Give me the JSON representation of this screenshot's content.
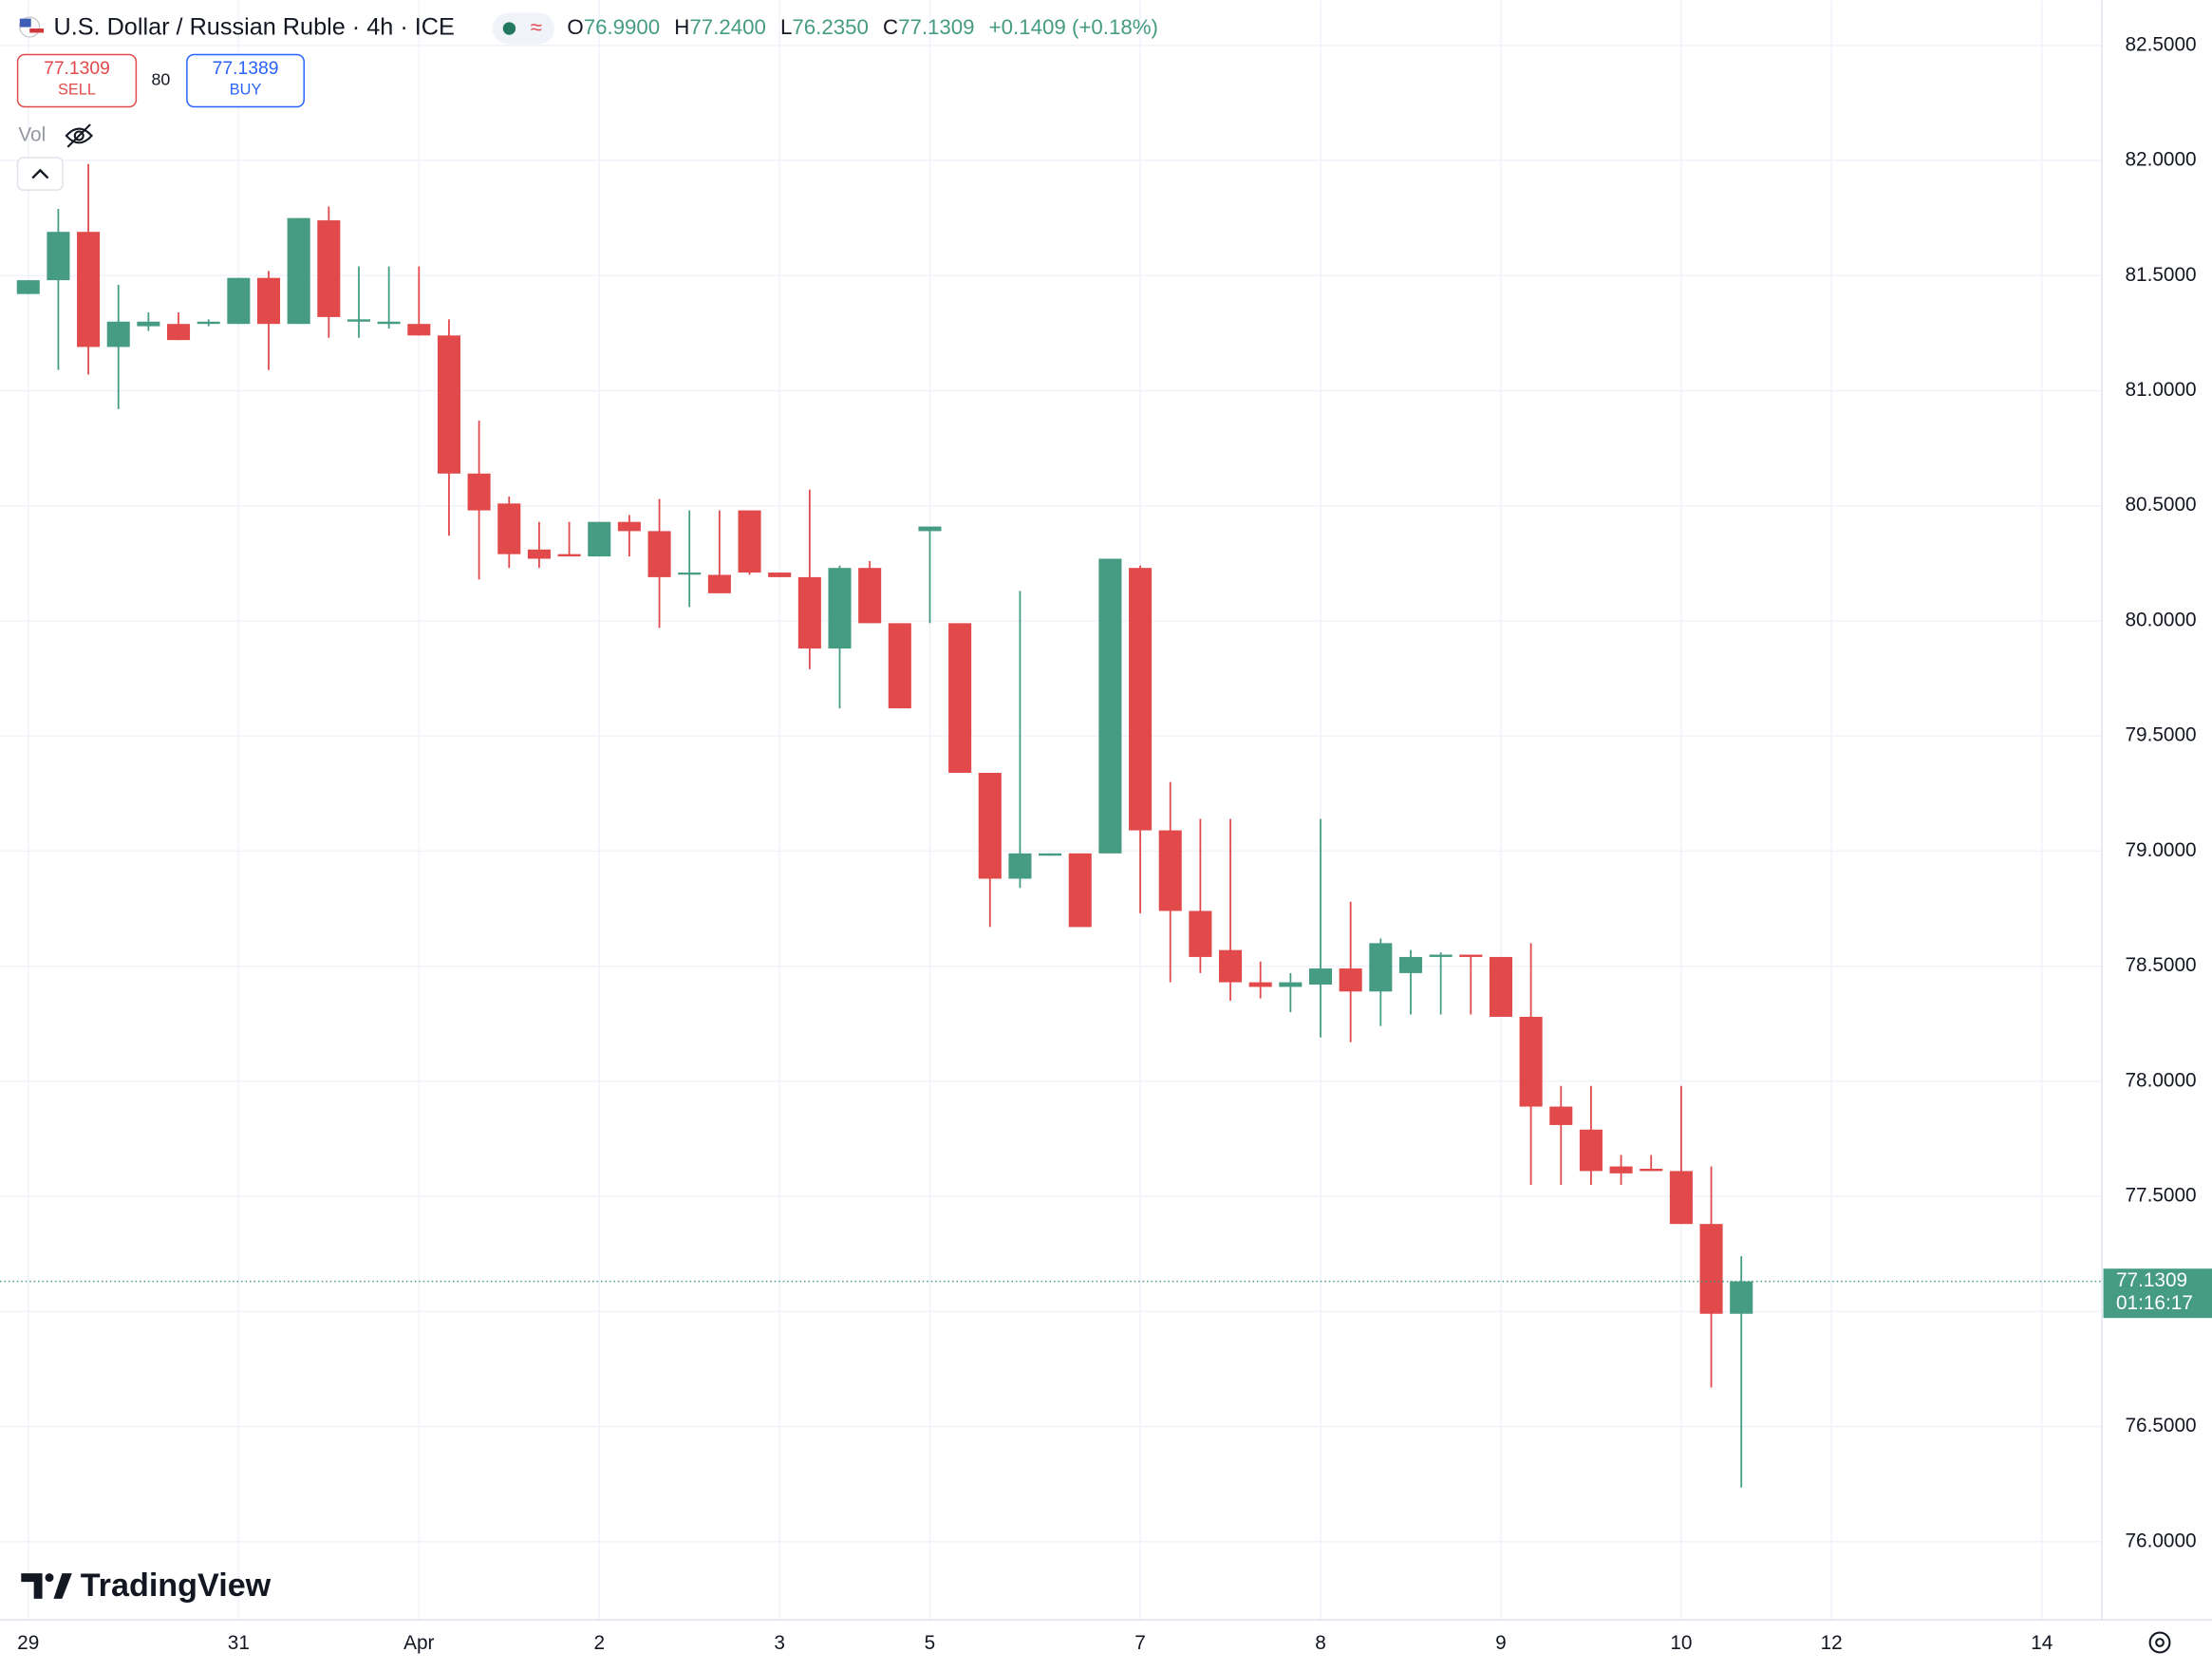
{
  "header": {
    "title": "U.S. Dollar / Russian Ruble · 4h · ICE",
    "open_label": "O",
    "open": "76.9900",
    "high_label": "H",
    "high": "77.2400",
    "low_label": "L",
    "low": "76.2350",
    "close_label": "C",
    "close": "77.1309",
    "change": "+0.1409 (+0.18%)"
  },
  "trade": {
    "sell_price": "77.1309",
    "sell_label": "SELL",
    "spread": "80",
    "buy_price": "77.1389",
    "buy_label": "BUY"
  },
  "volume_label": "Vol",
  "logo": "TradingView",
  "chart_data": {
    "type": "candlestick",
    "up_color": "#459c83",
    "down_color": "#e2494b",
    "x": [
      0,
      1,
      2,
      3,
      4,
      5,
      6,
      7,
      8,
      9,
      10,
      11,
      12,
      13,
      14,
      15,
      16,
      17,
      18,
      19,
      20,
      21,
      22,
      23,
      24,
      25,
      26,
      27,
      28,
      29,
      30,
      31,
      32,
      33,
      34,
      35,
      36,
      37,
      38,
      39,
      40,
      41,
      42,
      43,
      44,
      45,
      46,
      47,
      48,
      49,
      50,
      51,
      52,
      53,
      54,
      55,
      56,
      57
    ],
    "open": [
      81.42,
      81.48,
      81.69,
      81.19,
      81.28,
      81.29,
      81.29,
      81.29,
      81.49,
      81.29,
      81.74,
      81.3,
      81.29,
      81.29,
      81.24,
      80.64,
      80.51,
      80.31,
      80.29,
      80.28,
      80.43,
      80.39,
      80.21,
      80.2,
      80.48,
      80.21,
      80.19,
      79.88,
      80.23,
      79.99,
      80.39,
      79.99,
      79.34,
      78.88,
      78.98,
      78.99,
      78.99,
      80.23,
      79.09,
      78.74,
      78.57,
      78.43,
      78.41,
      78.42,
      78.49,
      78.39,
      78.47,
      78.54,
      78.55,
      78.54,
      78.28,
      77.89,
      77.79,
      77.63,
      77.62,
      77.61,
      77.38,
      76.99
    ],
    "high": [
      81.48,
      81.79,
      81.985,
      81.46,
      81.34,
      81.34,
      81.31,
      81.49,
      81.52,
      81.75,
      81.8,
      81.54,
      81.54,
      81.54,
      81.31,
      80.87,
      80.54,
      80.43,
      80.43,
      80.43,
      80.46,
      80.53,
      80.48,
      80.48,
      80.48,
      80.21,
      80.57,
      80.24,
      80.26,
      79.99,
      80.41,
      79.99,
      79.34,
      80.13,
      78.99,
      78.99,
      80.27,
      80.24,
      79.3,
      79.14,
      79.14,
      78.52,
      78.47,
      79.14,
      78.78,
      78.62,
      78.57,
      78.56,
      78.55,
      78.54,
      78.6,
      77.98,
      77.98,
      77.68,
      77.68,
      77.98,
      77.63,
      77.24
    ],
    "low": [
      81.42,
      81.09,
      81.07,
      80.92,
      81.26,
      81.22,
      81.28,
      81.29,
      81.09,
      81.29,
      81.23,
      81.23,
      81.27,
      81.24,
      80.37,
      80.18,
      80.23,
      80.23,
      80.28,
      80.28,
      80.28,
      79.97,
      80.06,
      80.12,
      80.2,
      80.19,
      79.79,
      79.62,
      79.99,
      79.62,
      79.99,
      79.34,
      78.67,
      78.84,
      78.98,
      78.67,
      78.99,
      78.73,
      78.43,
      78.47,
      78.35,
      78.36,
      78.3,
      78.19,
      78.17,
      78.24,
      78.29,
      78.29,
      78.29,
      78.28,
      77.55,
      77.55,
      77.55,
      77.55,
      77.61,
      77.38,
      76.67,
      76.235
    ],
    "close": [
      81.48,
      81.69,
      81.19,
      81.3,
      81.3,
      81.22,
      81.3,
      81.49,
      81.29,
      81.75,
      81.32,
      81.31,
      81.3,
      81.24,
      80.64,
      80.48,
      80.29,
      80.27,
      80.28,
      80.43,
      80.39,
      80.19,
      80.21,
      80.12,
      80.21,
      80.19,
      79.88,
      80.23,
      79.99,
      79.62,
      80.41,
      79.34,
      78.88,
      78.99,
      78.99,
      78.67,
      80.27,
      79.09,
      78.74,
      78.54,
      78.43,
      78.41,
      78.43,
      78.49,
      78.39,
      78.6,
      78.54,
      78.55,
      78.54,
      78.28,
      77.89,
      77.81,
      77.61,
      77.6,
      77.61,
      77.38,
      76.99,
      77.1309
    ],
    "xlim": [
      -0.94,
      69.0
    ],
    "xticks": [
      {
        "value": 0,
        "label": "29"
      },
      {
        "value": 7,
        "label": "31"
      },
      {
        "value": 13,
        "label": "Apr"
      },
      {
        "value": 19,
        "label": "2"
      },
      {
        "value": 25,
        "label": "3"
      },
      {
        "value": 30,
        "label": "5"
      },
      {
        "value": 37,
        "label": "7"
      },
      {
        "value": 43,
        "label": "8"
      },
      {
        "value": 49,
        "label": "9"
      },
      {
        "value": 55,
        "label": "10"
      },
      {
        "value": 60,
        "label": "12"
      },
      {
        "value": 67,
        "label": "14"
      }
    ],
    "ylim": [
      75.66,
      82.696
    ],
    "yticks": [
      {
        "value": 76.0,
        "label": "76.0000"
      },
      {
        "value": 76.5,
        "label": "76.5000"
      },
      {
        "value": 77.0,
        "label": "77.0000"
      },
      {
        "value": 77.5,
        "label": "77.5000"
      },
      {
        "value": 78.0,
        "label": "78.0000"
      },
      {
        "value": 78.5,
        "label": "78.5000"
      },
      {
        "value": 79.0,
        "label": "79.0000"
      },
      {
        "value": 79.5,
        "label": "79.5000"
      },
      {
        "value": 80.0,
        "label": "80.0000"
      },
      {
        "value": 80.5,
        "label": "80.5000"
      },
      {
        "value": 81.0,
        "label": "81.0000"
      },
      {
        "value": 81.5,
        "label": "81.5000"
      },
      {
        "value": 82.0,
        "label": "82.0000"
      },
      {
        "value": 82.5,
        "label": "82.5000"
      }
    ],
    "grid": true,
    "last_price": {
      "value": 77.1309,
      "label": "77.1309",
      "countdown": "01:16:17"
    }
  }
}
